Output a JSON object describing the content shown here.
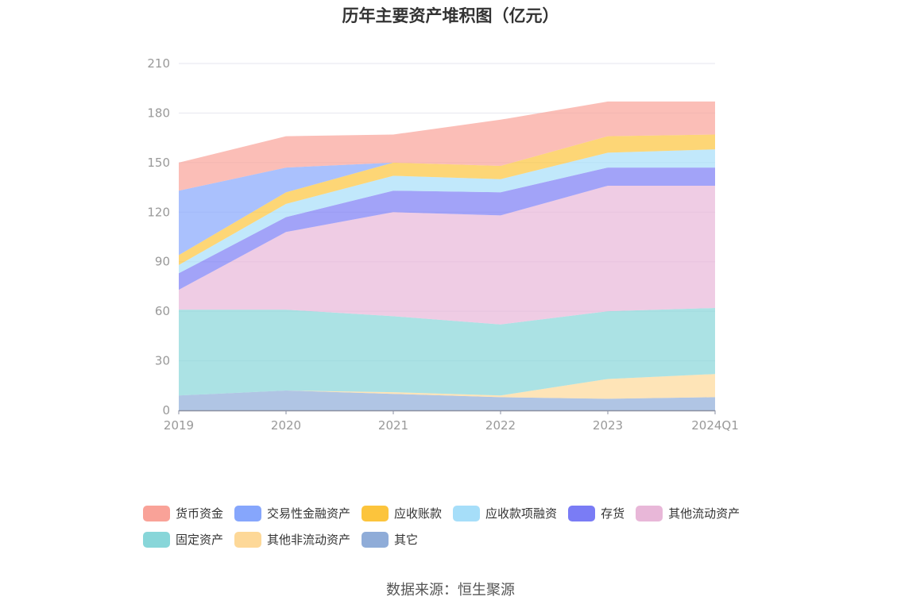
{
  "chart_data": {
    "type": "area",
    "stacked": true,
    "title": "历年主要资产堆积图（亿元）",
    "categories": [
      "2019",
      "2020",
      "2021",
      "2022",
      "2023",
      "2024Q1"
    ],
    "y_ticks": [
      "0",
      "30",
      "60",
      "90",
      "120",
      "150",
      "180",
      "210"
    ],
    "ylim": [
      0,
      210
    ],
    "grid": true,
    "legend_position": "bottom",
    "series": [
      {
        "name": "其它",
        "color": "#8facd8",
        "values": [
          9,
          12,
          10,
          8,
          7,
          8
        ]
      },
      {
        "name": "其他非流动资产",
        "color": "#fdd898",
        "values": [
          0,
          0,
          1,
          1,
          12,
          14
        ]
      },
      {
        "name": "固定资产",
        "color": "#88d6d9",
        "values": [
          52,
          49,
          46,
          43,
          41,
          40
        ]
      },
      {
        "name": "其他流动资产",
        "color": "#e8b7d8",
        "values": [
          12,
          47,
          63,
          66,
          76,
          74
        ]
      },
      {
        "name": "存货",
        "color": "#7a7cf5",
        "values": [
          10,
          9,
          13,
          14,
          11,
          11
        ]
      },
      {
        "name": "应收款项融资",
        "color": "#a6def9",
        "values": [
          5,
          8,
          9,
          8,
          9,
          11
        ]
      },
      {
        "name": "应收账款",
        "color": "#fcc43c",
        "values": [
          6,
          7,
          8,
          8,
          10,
          9
        ]
      },
      {
        "name": "交易性金融资产",
        "color": "#86a6fc",
        "values": [
          39,
          15,
          0,
          0,
          0,
          0
        ]
      },
      {
        "name": "货币资金",
        "color": "#f9a298",
        "values": [
          17,
          19,
          17,
          28,
          21,
          20
        ]
      }
    ]
  },
  "legend": {
    "row1": [
      "货币资金",
      "交易性金融资产",
      "应收账款",
      "应收款项融资",
      "存货",
      "其他流动资产"
    ],
    "row2": [
      "固定资产",
      "其他非流动资产",
      "其它"
    ],
    "colors": {
      "货币资金": "#f9a298",
      "交易性金融资产": "#86a6fc",
      "应收账款": "#fcc43c",
      "应收款项融资": "#a6def9",
      "存货": "#7a7cf5",
      "其他流动资产": "#e8b7d8",
      "固定资产": "#88d6d9",
      "其他非流动资产": "#fdd898",
      "其它": "#8facd8"
    }
  },
  "source": "数据来源：恒生聚源"
}
